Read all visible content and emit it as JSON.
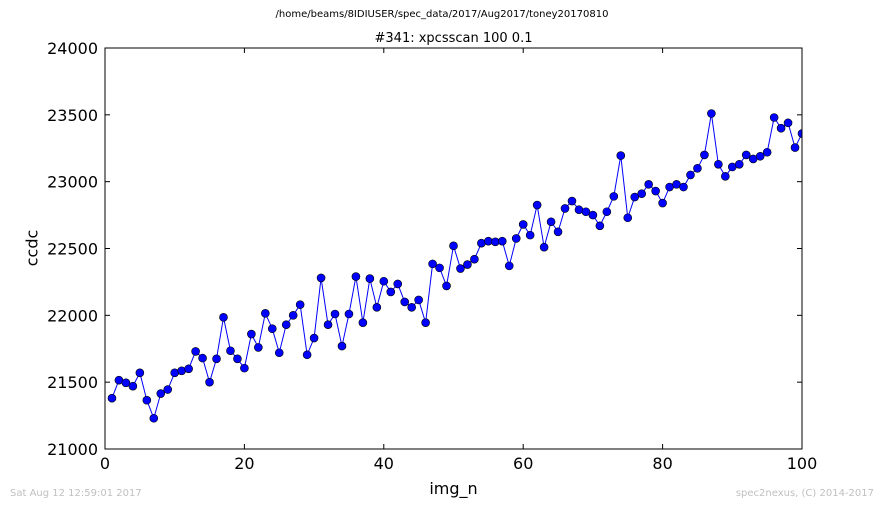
{
  "header": {
    "path": "/home/beams/8IDIUSER/spec_data/2017/Aug2017/toney20170810",
    "scan_title": "#341: xpcsscan 100 0.1"
  },
  "footer": {
    "timestamp": "Sat Aug 12 12:59:01 2017",
    "credit": "spec2nexus, (C) 2014-2017"
  },
  "chart_data": {
    "type": "line",
    "title": "#341: xpcsscan 100 0.1",
    "xlabel": "img_n",
    "ylabel": "ccdc",
    "xlim": [
      0,
      100
    ],
    "ylim": [
      21000,
      24000
    ],
    "xticks": [
      0,
      20,
      40,
      60,
      80,
      100
    ],
    "yticks": [
      21000,
      21500,
      22000,
      22500,
      23000,
      23500,
      24000
    ],
    "grid": false,
    "legend": "none",
    "series": [
      {
        "color": "#0000ff",
        "marker": "circle",
        "x": [
          1,
          2,
          3,
          4,
          5,
          6,
          7,
          8,
          9,
          10,
          11,
          12,
          13,
          14,
          15,
          16,
          17,
          18,
          19,
          20,
          21,
          22,
          23,
          24,
          25,
          26,
          27,
          28,
          29,
          30,
          31,
          32,
          33,
          34,
          35,
          36,
          37,
          38,
          39,
          40,
          41,
          42,
          43,
          44,
          45,
          46,
          47,
          48,
          49,
          50,
          51,
          52,
          53,
          54,
          55,
          56,
          57,
          58,
          59,
          60,
          61,
          62,
          63,
          64,
          65,
          66,
          67,
          68,
          69,
          70,
          71,
          72,
          73,
          74,
          75,
          76,
          77,
          78,
          79,
          80,
          81,
          82,
          83,
          84,
          85,
          86,
          87,
          88,
          89,
          90,
          91,
          92,
          93,
          94,
          95,
          96,
          97,
          98,
          99,
          100
        ],
        "y": [
          21380,
          21515,
          21495,
          21470,
          21570,
          21365,
          21230,
          21415,
          21445,
          21570,
          21585,
          21600,
          21730,
          21680,
          21500,
          21675,
          21985,
          21735,
          21675,
          21605,
          21860,
          21760,
          22015,
          21900,
          21720,
          21930,
          22000,
          22080,
          21705,
          21830,
          22280,
          21930,
          22010,
          21770,
          22010,
          22290,
          21945,
          22275,
          22060,
          22255,
          22175,
          22235,
          22100,
          22060,
          22115,
          21945,
          22385,
          22355,
          22220,
          22520,
          22350,
          22380,
          22420,
          22540,
          22555,
          22550,
          22555,
          22370,
          22575,
          22680,
          22600,
          22825,
          22510,
          22700,
          22625,
          22800,
          22855,
          22790,
          22775,
          22750,
          22670,
          22775,
          22890,
          23195,
          22730,
          22885,
          22910,
          22980,
          22930,
          22840,
          22960,
          22980,
          22960,
          23050,
          23100,
          23200,
          23510,
          23130,
          23040,
          23110,
          23130,
          23200,
          23170,
          23190,
          23220,
          23480,
          23400,
          23440,
          23255,
          23360
        ]
      }
    ]
  }
}
